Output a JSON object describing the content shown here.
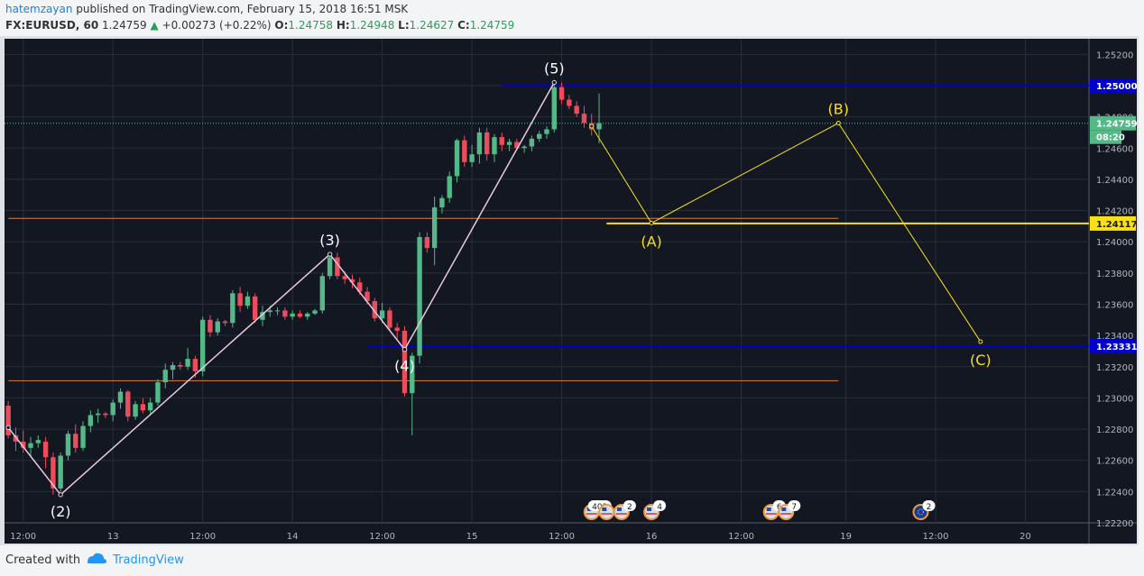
{
  "header": {
    "author": "hatemzayan",
    "published_text": "published on TradingView.com, February 15, 2018 16:51 MSK",
    "symbol": "FX:EURUSD, 60",
    "last": "1.24759",
    "change_arrow": "▲",
    "change": "+0.00273 (+0.22%)",
    "o_label": "O:",
    "o_value": "1.24758",
    "h_label": "H:",
    "h_value": "1.24948",
    "l_label": "L:",
    "l_value": "1.24627",
    "c_label": "C:",
    "c_value": "1.24759"
  },
  "footer": {
    "created_with": "Created with",
    "brand": "TradingView"
  },
  "colors": {
    "background": "#131722",
    "grid": "#2a2e39",
    "up_candle": "#53b987",
    "down_candle": "#eb4d5c",
    "wave_line": "#e8cbe0",
    "projection_line": "#f7e017",
    "level_blue": "#0000c8",
    "level_orange": "#e07b39",
    "price_label_green": "#53b987",
    "price_label_blue": "#0000c8",
    "price_label_yellow": "#f7e017"
  },
  "chart_data": {
    "type": "candlestick",
    "symbol": "FX:EURUSD",
    "interval": "60",
    "ylim": [
      1.222,
      1.253
    ],
    "y_ticks": [
      "1.25200",
      "1.25000",
      "1.24800",
      "1.24600",
      "1.24400",
      "1.24200",
      "1.24000",
      "1.23800",
      "1.23600",
      "1.23400",
      "1.23200",
      "1.23000",
      "1.22800",
      "1.22600",
      "1.22400",
      "1.22200"
    ],
    "x_ticks": [
      {
        "bar": 2,
        "label": "12:00"
      },
      {
        "bar": 14,
        "label": "13"
      },
      {
        "bar": 26,
        "label": "12:00"
      },
      {
        "bar": 38,
        "label": "14"
      },
      {
        "bar": 50,
        "label": "12:00"
      },
      {
        "bar": 62,
        "label": "15"
      },
      {
        "bar": 74,
        "label": "12:00"
      },
      {
        "bar": 86,
        "label": "16"
      },
      {
        "bar": 98,
        "label": "12:00"
      },
      {
        "bar": 112,
        "label": "19"
      },
      {
        "bar": 124,
        "label": "12:00"
      },
      {
        "bar": 136,
        "label": "20"
      }
    ],
    "bar_count_visible": 145,
    "ohlc": [
      [
        1.2295,
        1.2298,
        1.2274,
        1.2276
      ],
      [
        1.2276,
        1.2281,
        1.2266,
        1.2272
      ],
      [
        1.2272,
        1.2279,
        1.2265,
        1.2268
      ],
      [
        1.2268,
        1.2275,
        1.2262,
        1.2271
      ],
      [
        1.2271,
        1.2276,
        1.2268,
        1.2273
      ],
      [
        1.2272,
        1.2275,
        1.2255,
        1.2262
      ],
      [
        1.2262,
        1.2265,
        1.2238,
        1.2242
      ],
      [
        1.2242,
        1.2265,
        1.224,
        1.2263
      ],
      [
        1.2263,
        1.2279,
        1.226,
        1.2277
      ],
      [
        1.2277,
        1.2283,
        1.2265,
        1.2268
      ],
      [
        1.2268,
        1.2285,
        1.2266,
        1.2282
      ],
      [
        1.2282,
        1.2292,
        1.2278,
        1.2289
      ],
      [
        1.2289,
        1.2293,
        1.2284,
        1.229
      ],
      [
        1.229,
        1.2291,
        1.2287,
        1.2289
      ],
      [
        1.2289,
        1.2299,
        1.2285,
        1.2297
      ],
      [
        1.2297,
        1.2306,
        1.2293,
        1.2304
      ],
      [
        1.2304,
        1.2305,
        1.2285,
        1.2288
      ],
      [
        1.2288,
        1.2298,
        1.2286,
        1.2296
      ],
      [
        1.2296,
        1.23,
        1.229,
        1.2292
      ],
      [
        1.2292,
        1.23,
        1.229,
        1.2297
      ],
      [
        1.2297,
        1.2312,
        1.2295,
        1.231
      ],
      [
        1.231,
        1.2322,
        1.2306,
        1.2318
      ],
      [
        1.2318,
        1.2323,
        1.2312,
        1.2321
      ],
      [
        1.2321,
        1.2323,
        1.2318,
        1.232
      ],
      [
        1.232,
        1.2332,
        1.2318,
        1.2325
      ],
      [
        1.2325,
        1.2327,
        1.2313,
        1.2317
      ],
      [
        1.2317,
        1.2352,
        1.2314,
        1.235
      ],
      [
        1.235,
        1.2353,
        1.2339,
        1.2342
      ],
      [
        1.2342,
        1.2351,
        1.234,
        1.2349
      ],
      [
        1.2349,
        1.235,
        1.2346,
        1.2348
      ],
      [
        1.2348,
        1.2369,
        1.2345,
        1.2367
      ],
      [
        1.2367,
        1.2371,
        1.2355,
        1.2359
      ],
      [
        1.2359,
        1.2368,
        1.2357,
        1.2365
      ],
      [
        1.2365,
        1.2367,
        1.2348,
        1.235
      ],
      [
        1.235,
        1.2359,
        1.2346,
        1.2355
      ],
      [
        1.2355,
        1.2359,
        1.2352,
        1.2356
      ],
      [
        1.2356,
        1.2358,
        1.2353,
        1.2356
      ],
      [
        1.2356,
        1.2358,
        1.235,
        1.2352
      ],
      [
        1.2352,
        1.2356,
        1.235,
        1.2354
      ],
      [
        1.2354,
        1.2356,
        1.2351,
        1.2352
      ],
      [
        1.2352,
        1.2355,
        1.235,
        1.2354
      ],
      [
        1.2354,
        1.2357,
        1.2353,
        1.2356
      ],
      [
        1.2356,
        1.238,
        1.2354,
        1.2378
      ],
      [
        1.2378,
        1.2392,
        1.2376,
        1.239
      ],
      [
        1.239,
        1.2393,
        1.2376,
        1.2378
      ],
      [
        1.2378,
        1.2381,
        1.2373,
        1.2376
      ],
      [
        1.2376,
        1.2379,
        1.237,
        1.2374
      ],
      [
        1.2374,
        1.2377,
        1.2366,
        1.2368
      ],
      [
        1.2368,
        1.2371,
        1.236,
        1.2362
      ],
      [
        1.2362,
        1.2364,
        1.2349,
        1.2351
      ],
      [
        1.2351,
        1.2361,
        1.2348,
        1.2356
      ],
      [
        1.2356,
        1.2358,
        1.2343,
        1.2345
      ],
      [
        1.2345,
        1.2348,
        1.2338,
        1.2343
      ],
      [
        1.2343,
        1.2346,
        1.2301,
        1.2303
      ],
      [
        1.2303,
        1.2329,
        1.2276,
        1.2327
      ],
      [
        1.2327,
        1.2406,
        1.2322,
        1.2403
      ],
      [
        1.2403,
        1.2406,
        1.2393,
        1.2396
      ],
      [
        1.2396,
        1.2429,
        1.2385,
        1.2422
      ],
      [
        1.2422,
        1.243,
        1.2418,
        1.2428
      ],
      [
        1.2428,
        1.2445,
        1.2425,
        1.2442
      ],
      [
        1.2442,
        1.2466,
        1.2438,
        1.2465
      ],
      [
        1.2465,
        1.2468,
        1.2448,
        1.2451
      ],
      [
        1.2451,
        1.2462,
        1.2448,
        1.2456
      ],
      [
        1.2456,
        1.2473,
        1.245,
        1.247
      ],
      [
        1.247,
        1.2473,
        1.2452,
        1.2456
      ],
      [
        1.2456,
        1.2469,
        1.2451,
        1.2467
      ],
      [
        1.2467,
        1.247,
        1.2458,
        1.2462
      ],
      [
        1.2462,
        1.2466,
        1.2458,
        1.2464
      ],
      [
        1.2464,
        1.2466,
        1.2459,
        1.246
      ],
      [
        1.246,
        1.2462,
        1.2457,
        1.2461
      ],
      [
        1.2461,
        1.2468,
        1.2458,
        1.2466
      ],
      [
        1.2466,
        1.2471,
        1.2464,
        1.2469
      ],
      [
        1.2469,
        1.2474,
        1.2466,
        1.2472
      ],
      [
        1.2472,
        1.2503,
        1.247,
        1.2499
      ],
      [
        1.2499,
        1.2502,
        1.2488,
        1.2491
      ],
      [
        1.2491,
        1.2494,
        1.2485,
        1.2487
      ],
      [
        1.2487,
        1.249,
        1.248,
        1.2482
      ],
      [
        1.2482,
        1.2487,
        1.2473,
        1.2476
      ],
      [
        1.2476,
        1.2482,
        1.2468,
        1.2472
      ],
      [
        1.2472,
        1.2495,
        1.2463,
        1.2476
      ]
    ],
    "wave_labels": [
      {
        "label": "(2)",
        "bar": 7,
        "price": 1.2238,
        "pos": "below"
      },
      {
        "label": "(3)",
        "bar": 43,
        "price": 1.2392,
        "pos": "above"
      },
      {
        "label": "(4)",
        "bar": 53,
        "price": 1.2331,
        "pos": "below"
      },
      {
        "label": "(5)",
        "bar": 73,
        "price": 1.2502,
        "pos": "above"
      }
    ],
    "wave_path": [
      {
        "bar": 0,
        "price": 1.2281
      },
      {
        "bar": 7,
        "price": 1.2238
      },
      {
        "bar": 43,
        "price": 1.2392
      },
      {
        "bar": 53,
        "price": 1.2331
      },
      {
        "bar": 73,
        "price": 1.2502
      }
    ],
    "projection_path": [
      {
        "bar": 78,
        "price": 1.2474
      },
      {
        "bar": 86,
        "price": 1.2412
      },
      {
        "bar": 111,
        "price": 1.2476
      },
      {
        "bar": 130,
        "price": 1.2336
      }
    ],
    "projection_labels": [
      {
        "label": "(A)",
        "bar": 86,
        "price": 1.2412,
        "pos": "below"
      },
      {
        "label": "(B)",
        "bar": 111,
        "price": 1.2476,
        "pos": "above"
      },
      {
        "label": "(C)",
        "bar": 130,
        "price": 1.2336,
        "pos": "below"
      }
    ],
    "horizontal_levels": [
      {
        "price": 1.25,
        "color": "blue",
        "from_bar": 66,
        "label": "1.25000"
      },
      {
        "price": 1.23331,
        "color": "blue",
        "from_bar": 48,
        "label": "1.23331"
      },
      {
        "price": 1.24117,
        "color": "yellow",
        "from_bar": 80,
        "label": "1.24117"
      },
      {
        "price": 1.2415,
        "color": "orange",
        "from_bar": 0,
        "to_bar": 111
      },
      {
        "price": 1.2311,
        "color": "orange",
        "from_bar": 0,
        "to_bar": 111
      }
    ],
    "last_price": {
      "price": 1.24759,
      "label": "1.24759",
      "countdown": "08:20"
    },
    "events": [
      {
        "bar": 78,
        "flag": "us",
        "count": "403"
      },
      {
        "bar": 80,
        "flag": "us",
        "count": ""
      },
      {
        "bar": 82,
        "flag": "us",
        "count": "2"
      },
      {
        "bar": 86,
        "flag": "us",
        "count": "4"
      },
      {
        "bar": 102,
        "flag": "us",
        "count": "6"
      },
      {
        "bar": 104,
        "flag": "us",
        "count": "7"
      },
      {
        "bar": 122,
        "flag": "eu",
        "count": "2"
      }
    ]
  }
}
